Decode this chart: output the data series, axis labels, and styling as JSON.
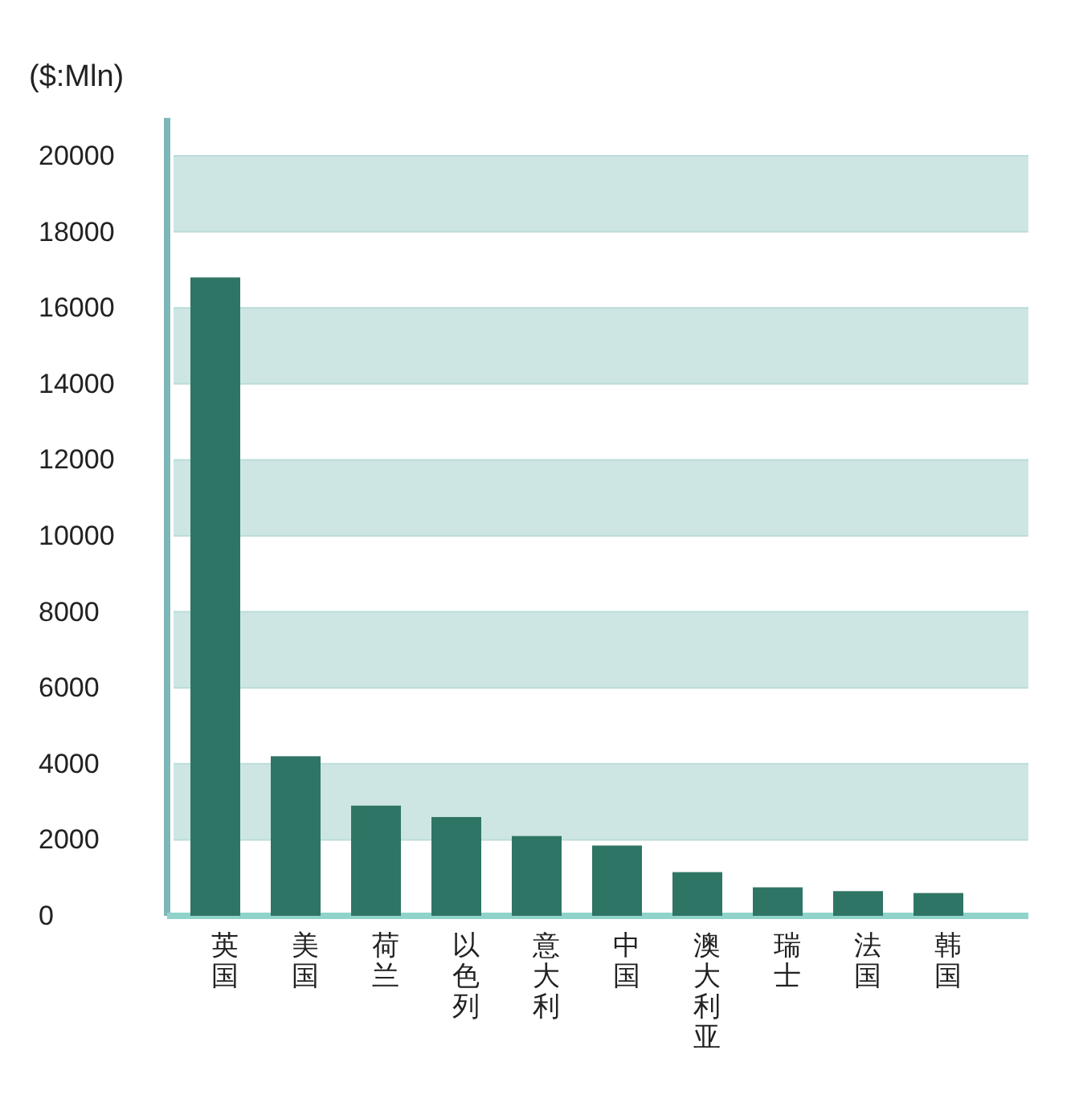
{
  "chart_data": {
    "type": "bar",
    "ylabel": "($:Mln)",
    "categories": [
      "英国",
      "美国",
      "荷兰",
      "以色列",
      "意大利",
      "中国",
      "澳大利亚",
      "瑞士",
      "法国",
      "韩国"
    ],
    "values": [
      16800,
      4200,
      2900,
      2600,
      2100,
      1850,
      1150,
      750,
      650,
      600
    ],
    "color": "#2f7565",
    "ylim": [
      0,
      21000
    ],
    "yticks": [
      0,
      2000,
      4000,
      6000,
      8000,
      10000,
      12000,
      14000,
      16000,
      18000,
      20000
    ],
    "grid": "y"
  }
}
